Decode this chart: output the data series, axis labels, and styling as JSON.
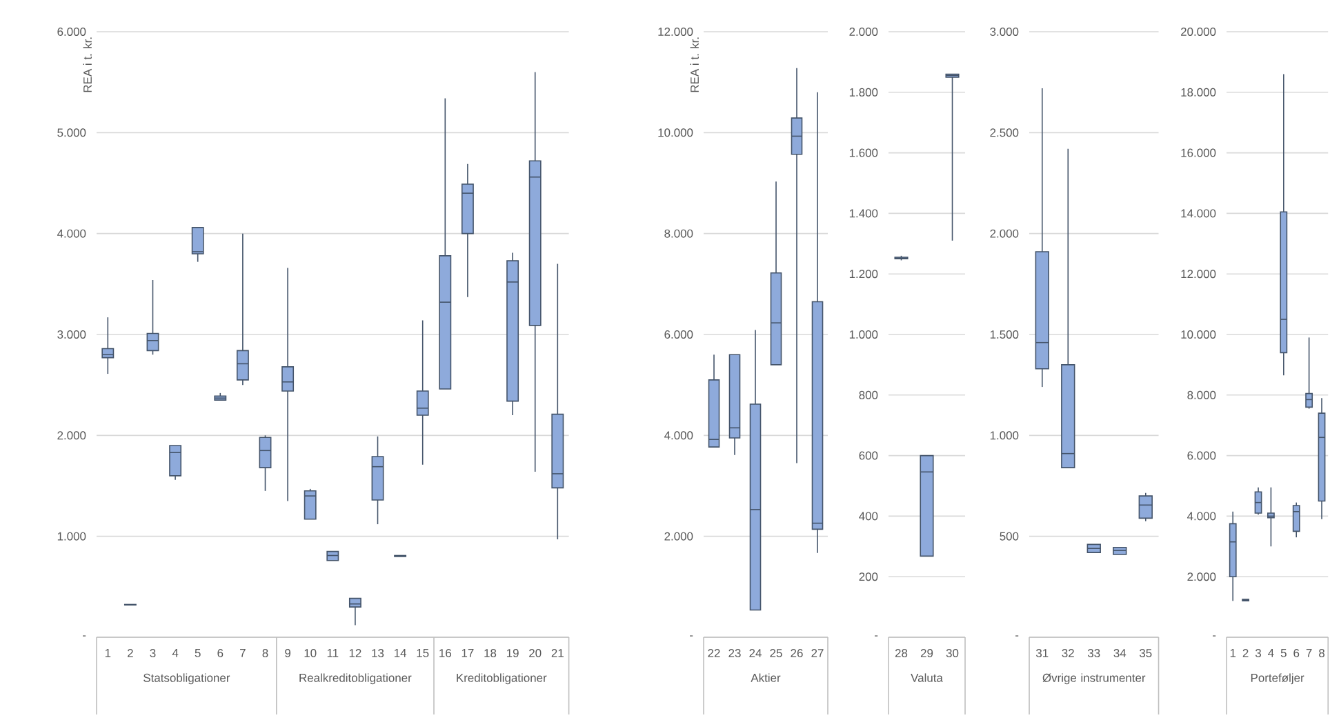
{
  "chart_data": [
    {
      "type": "box",
      "ylabel": "REA i t. kr.",
      "annotations": [
        "Statsobligationer",
        "Realkreditobligationer",
        "Kreditobligationer"
      ],
      "color": "#8eaadb",
      "grid": "y",
      "categories": [
        "1",
        "2",
        "3",
        "4",
        "5",
        "6",
        "7",
        "8",
        "9",
        "10",
        "11",
        "12",
        "13",
        "14",
        "15",
        "16",
        "17",
        "18",
        "19",
        "20",
        "21"
      ],
      "ylim": [
        0,
        6000
      ],
      "yticks": [
        {
          "value": 0,
          "label": "-"
        },
        {
          "value": 1000,
          "label": "1.000"
        },
        {
          "value": 2000,
          "label": "2.000"
        },
        {
          "value": 3000,
          "label": "3.000"
        },
        {
          "value": 4000,
          "label": "4.000"
        },
        {
          "value": 5000,
          "label": "5.000"
        },
        {
          "value": 6000,
          "label": "6.000"
        }
      ],
      "boxes": [
        {
          "low": 2610,
          "q1": 2770,
          "median": 2800,
          "q3": 2860,
          "high": 3170
        },
        {
          "low": 320,
          "q1": 320,
          "median": 320,
          "q3": 325,
          "high": 325
        },
        {
          "low": 2800,
          "q1": 2840,
          "median": 2940,
          "q3": 3010,
          "high": 3540
        },
        {
          "low": 1560,
          "q1": 1600,
          "median": 1830,
          "q3": 1900,
          "high": 1900
        },
        {
          "low": 3720,
          "q1": 3800,
          "median": 3820,
          "q3": 4060,
          "high": 4060
        },
        {
          "low": 2350,
          "q1": 2350,
          "median": 2370,
          "q3": 2390,
          "high": 2420
        },
        {
          "low": 2500,
          "q1": 2550,
          "median": 2710,
          "q3": 2840,
          "high": 4000
        },
        {
          "low": 1450,
          "q1": 1680,
          "median": 1850,
          "q3": 1980,
          "high": 2000
        },
        {
          "low": 1350,
          "q1": 2440,
          "median": 2530,
          "q3": 2680,
          "high": 3660
        },
        {
          "low": 1170,
          "q1": 1170,
          "median": 1400,
          "q3": 1450,
          "high": 1470
        },
        {
          "low": 760,
          "q1": 760,
          "median": 810,
          "q3": 850,
          "high": 850
        },
        {
          "low": 120,
          "q1": 300,
          "median": 330,
          "q3": 385,
          "high": 385
        },
        {
          "low": 1120,
          "q1": 1360,
          "median": 1690,
          "q3": 1790,
          "high": 1990
        },
        {
          "low": 800,
          "q1": 800,
          "median": 805,
          "q3": 810,
          "high": 810
        },
        {
          "low": 1710,
          "q1": 2200,
          "median": 2270,
          "q3": 2440,
          "high": 3140
        },
        {
          "low": 2460,
          "q1": 2460,
          "median": 3320,
          "q3": 3780,
          "high": 5340
        },
        {
          "low": 3370,
          "q1": 4000,
          "median": 4400,
          "q3": 4490,
          "high": 4690
        },
        null,
        {
          "low": 2200,
          "q1": 2340,
          "median": 3520,
          "q3": 3730,
          "high": 3810
        },
        {
          "low": 1640,
          "q1": 3090,
          "median": 4560,
          "q3": 4720,
          "high": 5600
        },
        {
          "low": 970,
          "q1": 1480,
          "median": 1620,
          "q3": 2210,
          "high": 3700
        }
      ]
    },
    {
      "type": "box",
      "ylabel": "REA i t. kr.",
      "xlabel": "Aktier",
      "color": "#8eaadb",
      "grid": "y",
      "categories": [
        "22",
        "23",
        "24",
        "25",
        "26",
        "27"
      ],
      "ylim": [
        0,
        12000
      ],
      "yticks": [
        {
          "value": 0,
          "label": "-"
        },
        {
          "value": 2000,
          "label": "2.000"
        },
        {
          "value": 4000,
          "label": "4.000"
        },
        {
          "value": 6000,
          "label": "6.000"
        },
        {
          "value": 8000,
          "label": "8.000"
        },
        {
          "value": 10000,
          "label": "10.000"
        },
        {
          "value": 12000,
          "label": "12.000"
        }
      ],
      "boxes": [
        {
          "low": 3770,
          "q1": 3770,
          "median": 3920,
          "q3": 5100,
          "high": 5600
        },
        {
          "low": 3610,
          "q1": 3950,
          "median": 4150,
          "q3": 5600,
          "high": 5600
        },
        {
          "low": 540,
          "q1": 540,
          "median": 2530,
          "q3": 4620,
          "high": 6090
        },
        {
          "low": 5400,
          "q1": 5400,
          "median": 6230,
          "q3": 7220,
          "high": 9030
        },
        {
          "low": 3450,
          "q1": 9570,
          "median": 9930,
          "q3": 10290,
          "high": 11280
        },
        {
          "low": 1670,
          "q1": 2140,
          "median": 2260,
          "q3": 6650,
          "high": 10800
        }
      ]
    },
    {
      "type": "box",
      "xlabel": "Valuta",
      "color": "#8eaadb",
      "grid": "y",
      "categories": [
        "28",
        "29",
        "30"
      ],
      "ylim": [
        0,
        2000
      ],
      "yticks": [
        {
          "value": 0,
          "label": "-"
        },
        200,
        400,
        600,
        800,
        {
          "value": 1000,
          "label": "1.000"
        },
        {
          "value": 1200,
          "label": "1.200"
        },
        {
          "value": 1400,
          "label": "1.400"
        },
        {
          "value": 1600,
          "label": "1.600"
        },
        {
          "value": 1800,
          "label": "1.800"
        },
        {
          "value": 2000,
          "label": "2.000"
        }
      ],
      "boxes": [
        {
          "low": 1245,
          "q1": 1250,
          "median": 1252,
          "q3": 1255,
          "high": 1260
        },
        {
          "low": 268,
          "q1": 268,
          "median": 546,
          "q3": 600,
          "high": 600
        },
        {
          "low": 1310,
          "q1": 1850,
          "median": 1856,
          "q3": 1860,
          "high": 1860
        }
      ]
    },
    {
      "type": "box",
      "xlabel": "Øvrige instrumenter",
      "color": "#8eaadb",
      "grid": "y",
      "categories": [
        "31",
        "32",
        "33",
        "34",
        "35"
      ],
      "ylim": [
        0,
        3000
      ],
      "yticks": [
        {
          "value": 0,
          "label": "-"
        },
        500,
        {
          "value": 1000,
          "label": "1.000"
        },
        {
          "value": 1500,
          "label": "1.500"
        },
        {
          "value": 2000,
          "label": "2.000"
        },
        {
          "value": 2500,
          "label": "2.500"
        },
        {
          "value": 3000,
          "label": "3.000"
        }
      ],
      "boxes": [
        {
          "low": 1240,
          "q1": 1330,
          "median": 1460,
          "q3": 1910,
          "high": 2720
        },
        {
          "low": 840,
          "q1": 840,
          "median": 910,
          "q3": 1350,
          "high": 2420
        },
        {
          "low": 420,
          "q1": 420,
          "median": 440,
          "q3": 460,
          "high": 460
        },
        {
          "low": 410,
          "q1": 410,
          "median": 430,
          "q3": 445,
          "high": 445
        },
        {
          "low": 575,
          "q1": 590,
          "median": 655,
          "q3": 700,
          "high": 715
        }
      ]
    },
    {
      "type": "box",
      "xlabel": "Porteføljer",
      "color": "#8eaadb",
      "grid": "y",
      "categories": [
        "1",
        "2",
        "3",
        "4",
        "5",
        "6",
        "7",
        "8"
      ],
      "ylim": [
        0,
        20000
      ],
      "yticks": [
        {
          "value": 0,
          "label": "-"
        },
        {
          "value": 2000,
          "label": "2.000"
        },
        {
          "value": 4000,
          "label": "4.000"
        },
        {
          "value": 6000,
          "label": "6.000"
        },
        {
          "value": 8000,
          "label": "8.000"
        },
        {
          "value": 10000,
          "label": "10.000"
        },
        {
          "value": 12000,
          "label": "12.000"
        },
        {
          "value": 14000,
          "label": "14.000"
        },
        {
          "value": 16000,
          "label": "16.000"
        },
        {
          "value": 18000,
          "label": "18.000"
        },
        {
          "value": 20000,
          "label": "20.000"
        }
      ],
      "boxes": [
        {
          "low": 1200,
          "q1": 2000,
          "median": 3150,
          "q3": 3750,
          "high": 4150
        },
        {
          "low": 1200,
          "q1": 1200,
          "median": 1220,
          "q3": 1250,
          "high": 1250
        },
        {
          "low": 4050,
          "q1": 4100,
          "median": 4450,
          "q3": 4800,
          "high": 4950
        },
        {
          "low": 3000,
          "q1": 3950,
          "median": 4000,
          "q3": 4100,
          "high": 4950
        },
        {
          "low": 8650,
          "q1": 9400,
          "median": 10500,
          "q3": 14050,
          "high": 18600
        },
        {
          "low": 3300,
          "q1": 3500,
          "median": 4150,
          "q3": 4350,
          "high": 4450
        },
        {
          "low": 7550,
          "q1": 7600,
          "median": 7850,
          "q3": 8050,
          "high": 9900
        },
        {
          "low": 3900,
          "q1": 4500,
          "median": 6600,
          "q3": 7400,
          "high": 7900
        }
      ]
    }
  ]
}
